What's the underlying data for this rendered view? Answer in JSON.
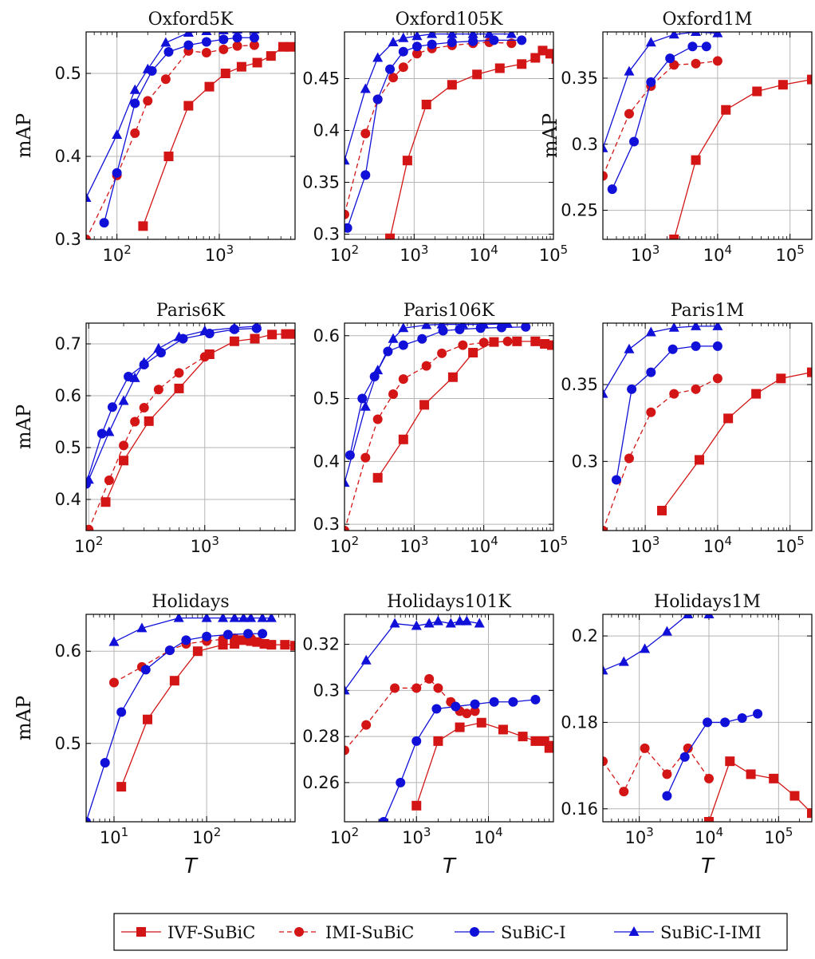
{
  "chart_data": [
    {
      "type": "line",
      "title": "Oxford5K",
      "ylabel": "mAP",
      "xlabel": "",
      "xscale": "log",
      "xlim": [
        50,
        5500
      ],
      "ylim": [
        0.3,
        0.55
      ],
      "series": [
        {
          "name": "IVF-SuBiC",
          "x": [
            180,
            320,
            500,
            800,
            1150,
            1650,
            2350,
            3200,
            4200,
            5000
          ],
          "y": [
            0.316,
            0.4,
            0.461,
            0.484,
            0.5,
            0.508,
            0.513,
            0.521,
            0.532,
            0.532
          ]
        },
        {
          "name": "IMI-SuBiC",
          "x": [
            50,
            100,
            150,
            200,
            300,
            500,
            750,
            1100,
            1500,
            2200
          ],
          "y": [
            0.3,
            0.377,
            0.428,
            0.467,
            0.493,
            0.527,
            0.525,
            0.529,
            0.533,
            0.534
          ]
        },
        {
          "name": "SuBiC-I",
          "x": [
            75,
            100,
            150,
            220,
            320,
            500,
            750,
            1100,
            1500,
            2200
          ],
          "y": [
            0.32,
            0.38,
            0.464,
            0.503,
            0.526,
            0.534,
            0.538,
            0.541,
            0.543,
            0.543
          ]
        },
        {
          "name": "SuBiC-I-IMI",
          "x": [
            50,
            100,
            150,
            200,
            300,
            500,
            750,
            1100,
            1500,
            2200
          ],
          "y": [
            0.35,
            0.426,
            0.48,
            0.505,
            0.537,
            0.549,
            0.551,
            0.552,
            0.553,
            0.553
          ]
        }
      ]
    },
    {
      "type": "line",
      "title": "Oxford105K",
      "ylabel": "",
      "xlabel": "",
      "xscale": "log",
      "xlim": [
        100,
        100000
      ],
      "ylim": [
        0.295,
        0.495
      ],
      "series": [
        {
          "name": "IVF-SuBiC",
          "x": [
            450,
            800,
            1500,
            3500,
            8000,
            17000,
            35000,
            55000,
            70000,
            90000,
            110000
          ],
          "y": [
            0.296,
            0.371,
            0.425,
            0.444,
            0.454,
            0.46,
            0.464,
            0.47,
            0.477,
            0.474,
            0.469
          ]
        },
        {
          "name": "IMI-SuBiC",
          "x": [
            100,
            200,
            300,
            500,
            700,
            1100,
            1800,
            3500,
            7000,
            12000,
            25000
          ],
          "y": [
            0.319,
            0.397,
            0.43,
            0.451,
            0.461,
            0.474,
            0.479,
            0.482,
            0.484,
            0.485,
            0.484
          ]
        },
        {
          "name": "SuBiC-I",
          "x": [
            110,
            200,
            300,
            450,
            700,
            1100,
            1800,
            3500,
            7000,
            14000,
            35000
          ],
          "y": [
            0.306,
            0.357,
            0.43,
            0.459,
            0.476,
            0.481,
            0.483,
            0.485,
            0.486,
            0.487,
            0.487
          ]
        },
        {
          "name": "SuBiC-I-IMI",
          "x": [
            100,
            200,
            300,
            500,
            700,
            1100,
            1800,
            3500,
            7000,
            12000,
            25000
          ],
          "y": [
            0.371,
            0.44,
            0.47,
            0.485,
            0.489,
            0.491,
            0.493,
            0.493,
            0.493,
            0.493,
            0.493
          ]
        }
      ]
    },
    {
      "type": "line",
      "title": "Oxford1M",
      "ylabel": "mAP",
      "xlabel": "",
      "xscale": "log",
      "xlim": [
        260,
        200000
      ],
      "ylim": [
        0.228,
        0.385
      ],
      "series": [
        {
          "name": "IVF-SuBiC",
          "x": [
            2500,
            5000,
            13000,
            35000,
            80000,
            200000
          ],
          "y": [
            0.228,
            0.288,
            0.326,
            0.34,
            0.345,
            0.349
          ]
        },
        {
          "name": "IMI-SuBiC",
          "x": [
            260,
            600,
            1200,
            2500,
            5000,
            10000
          ],
          "y": [
            0.276,
            0.323,
            0.344,
            0.36,
            0.361,
            0.363
          ]
        },
        {
          "name": "SuBiC-I",
          "x": [
            350,
            700,
            1200,
            2200,
            4500,
            7000
          ],
          "y": [
            0.266,
            0.302,
            0.347,
            0.365,
            0.374,
            0.374
          ]
        },
        {
          "name": "SuBiC-I-IMI",
          "x": [
            260,
            600,
            1200,
            2500,
            5000,
            10000
          ],
          "y": [
            0.297,
            0.355,
            0.377,
            0.383,
            0.385,
            0.384
          ]
        }
      ]
    },
    {
      "type": "line",
      "title": "Paris6K",
      "ylabel": "mAP",
      "xlabel": "",
      "xscale": "log",
      "xlim": [
        95,
        6000
      ],
      "ylim": [
        0.34,
        0.74
      ],
      "series": [
        {
          "name": "IVF-SuBiC",
          "x": [
            140,
            200,
            330,
            600,
            1100,
            1800,
            2700,
            3800,
            5000,
            6000
          ],
          "y": [
            0.395,
            0.475,
            0.551,
            0.614,
            0.68,
            0.705,
            0.71,
            0.718,
            0.719,
            0.719
          ]
        },
        {
          "name": "IMI-SuBiC",
          "x": [
            100,
            150,
            200,
            250,
            300,
            400,
            600,
            1000
          ],
          "y": [
            0.342,
            0.437,
            0.504,
            0.55,
            0.577,
            0.612,
            0.644,
            0.675
          ]
        },
        {
          "name": "SuBiC-I",
          "x": [
            95,
            130,
            160,
            220,
            300,
            420,
            650,
            1100,
            1800,
            2800
          ],
          "y": [
            0.43,
            0.527,
            0.578,
            0.637,
            0.66,
            0.683,
            0.71,
            0.72,
            0.728,
            0.73
          ]
        },
        {
          "name": "SuBiC-I-IMI",
          "x": [
            100,
            150,
            200,
            250,
            300,
            400,
            600,
            1000,
            1800,
            2800
          ],
          "y": [
            0.438,
            0.53,
            0.59,
            0.634,
            0.664,
            0.691,
            0.713,
            0.725,
            0.731,
            0.734
          ]
        }
      ]
    },
    {
      "type": "line",
      "title": "Paris106K",
      "ylabel": "",
      "xlabel": "",
      "xscale": "log",
      "xlim": [
        100,
        100000
      ],
      "ylim": [
        0.29,
        0.62
      ],
      "series": [
        {
          "name": "IVF-SuBiC",
          "x": [
            300,
            700,
            1400,
            3600,
            7000,
            14000,
            30000,
            55000,
            75000,
            95000
          ],
          "y": [
            0.374,
            0.435,
            0.49,
            0.534,
            0.573,
            0.59,
            0.591,
            0.591,
            0.587,
            0.585
          ]
        },
        {
          "name": "IMI-SuBiC",
          "x": [
            100,
            200,
            300,
            500,
            700,
            1500,
            2500,
            5000,
            10000,
            22000
          ],
          "y": [
            0.29,
            0.406,
            0.467,
            0.507,
            0.531,
            0.552,
            0.572,
            0.585,
            0.589,
            0.591
          ]
        },
        {
          "name": "SuBiC-I",
          "x": [
            120,
            180,
            270,
            420,
            700,
            1300,
            2600,
            4500,
            9000,
            18000,
            40000
          ],
          "y": [
            0.41,
            0.5,
            0.535,
            0.575,
            0.585,
            0.595,
            0.608,
            0.61,
            0.612,
            0.613,
            0.614
          ]
        },
        {
          "name": "SuBiC-I-IMI",
          "x": [
            100,
            200,
            300,
            500,
            700,
            1500,
            2500,
            5000,
            10000,
            22000
          ],
          "y": [
            0.366,
            0.487,
            0.545,
            0.595,
            0.612,
            0.617,
            0.618,
            0.618,
            0.618,
            0.619
          ]
        }
      ]
    },
    {
      "type": "line",
      "title": "Paris1M",
      "ylabel": "",
      "xlabel": "",
      "xscale": "log",
      "xlim": [
        260,
        200000
      ],
      "ylim": [
        0.255,
        0.39
      ],
      "series": [
        {
          "name": "IVF-SuBiC",
          "x": [
            1700,
            5600,
            14000,
            34000,
            75000,
            200000
          ],
          "y": [
            0.268,
            0.301,
            0.328,
            0.344,
            0.354,
            0.358
          ]
        },
        {
          "name": "IMI-SuBiC",
          "x": [
            260,
            600,
            1200,
            2500,
            5000,
            10000
          ],
          "y": [
            0.255,
            0.302,
            0.332,
            0.344,
            0.347,
            0.354
          ]
        },
        {
          "name": "SuBiC-I",
          "x": [
            400,
            650,
            1200,
            2400,
            5000,
            10000
          ],
          "y": [
            0.288,
            0.347,
            0.358,
            0.373,
            0.375,
            0.375
          ]
        },
        {
          "name": "SuBiC-I-IMI",
          "x": [
            260,
            600,
            1200,
            2500,
            5000,
            10000
          ],
          "y": [
            0.344,
            0.373,
            0.384,
            0.387,
            0.388,
            0.388
          ]
        }
      ]
    },
    {
      "type": "line",
      "title": "Holidays",
      "ylabel": "mAP",
      "xlabel": "T",
      "xscale": "log",
      "xlim": [
        5,
        900
      ],
      "ylim": [
        0.415,
        0.64
      ],
      "series": [
        {
          "name": "IVF-SuBiC",
          "x": [
            12,
            23,
            45,
            80,
            150,
            200,
            250,
            300,
            350,
            420,
            500,
            700,
            900
          ],
          "y": [
            0.453,
            0.526,
            0.568,
            0.6,
            0.607,
            0.608,
            0.612,
            0.611,
            0.61,
            0.608,
            0.607,
            0.607,
            0.606
          ]
        },
        {
          "name": "IMI-SuBiC",
          "x": [
            10,
            20,
            40,
            60,
            100,
            150,
            200,
            300
          ],
          "y": [
            0.566,
            0.583,
            0.601,
            0.608,
            0.611,
            0.613,
            0.614,
            0.614
          ]
        },
        {
          "name": "SuBiC-I",
          "x": [
            5,
            8,
            12,
            22,
            40,
            60,
            100,
            170,
            280,
            400
          ],
          "y": [
            0.415,
            0.479,
            0.534,
            0.58,
            0.601,
            0.612,
            0.616,
            0.618,
            0.619,
            0.619
          ]
        },
        {
          "name": "SuBiC-I-IMI",
          "x": [
            10,
            20,
            50,
            100,
            150,
            200,
            250,
            300,
            400,
            500
          ],
          "y": [
            0.61,
            0.625,
            0.636,
            0.636,
            0.636,
            0.636,
            0.636,
            0.636,
            0.636,
            0.636
          ]
        }
      ]
    },
    {
      "type": "line",
      "title": "Holidays101K",
      "ylabel": "",
      "xlabel": "T",
      "xscale": "log",
      "xlim": [
        100,
        80000
      ],
      "ylim": [
        0.243,
        0.333
      ],
      "series": [
        {
          "name": "IVF-SuBiC",
          "x": [
            1000,
            2000,
            4000,
            8000,
            16000,
            30000,
            45000,
            60000,
            70000,
            80000
          ],
          "y": [
            0.25,
            0.278,
            0.284,
            0.286,
            0.283,
            0.28,
            0.278,
            0.278,
            0.275,
            0.276
          ]
        },
        {
          "name": "IMI-SuBiC",
          "x": [
            100,
            200,
            500,
            1000,
            1500,
            2000,
            3000,
            4000,
            5000,
            6500
          ],
          "y": [
            0.274,
            0.285,
            0.301,
            0.301,
            0.305,
            0.301,
            0.295,
            0.291,
            0.29,
            0.291
          ]
        },
        {
          "name": "SuBiC-I",
          "x": [
            350,
            600,
            1000,
            1900,
            3500,
            6500,
            12000,
            22000,
            45000
          ],
          "y": [
            0.243,
            0.26,
            0.278,
            0.292,
            0.293,
            0.294,
            0.295,
            0.295,
            0.296
          ]
        },
        {
          "name": "SuBiC-I-IMI",
          "x": [
            100,
            200,
            500,
            1000,
            1500,
            2000,
            3000,
            4000,
            5000,
            7500
          ],
          "y": [
            0.3,
            0.313,
            0.329,
            0.328,
            0.329,
            0.33,
            0.329,
            0.33,
            0.33,
            0.329
          ]
        }
      ]
    },
    {
      "type": "line",
      "title": "Holidays1M",
      "ylabel": "",
      "xlabel": "T",
      "xscale": "log",
      "xlim": [
        300,
        300000
      ],
      "ylim": [
        0.157,
        0.205
      ],
      "series": [
        {
          "name": "IVF-SuBiC",
          "x": [
            10000,
            20000,
            40000,
            85000,
            170000,
            300000
          ],
          "y": [
            0.157,
            0.171,
            0.168,
            0.167,
            0.163,
            0.159
          ]
        },
        {
          "name": "IMI-SuBiC",
          "x": [
            300,
            600,
            1200,
            2500,
            5000,
            10000
          ],
          "y": [
            0.171,
            0.164,
            0.174,
            0.168,
            0.174,
            0.167
          ]
        },
        {
          "name": "SuBiC-I",
          "x": [
            2500,
            4500,
            9500,
            17000,
            30000,
            50000
          ],
          "y": [
            0.163,
            0.172,
            0.18,
            0.18,
            0.181,
            0.182
          ]
        },
        {
          "name": "SuBiC-I-IMI",
          "x": [
            300,
            600,
            1200,
            2500,
            5000,
            10000
          ],
          "y": [
            0.192,
            0.194,
            0.197,
            0.201,
            0.205,
            0.205
          ]
        }
      ]
    }
  ],
  "axis_labels": {
    "y": "mAP",
    "x": "T"
  },
  "legend": {
    "placement": "bottom-center",
    "entries": [
      {
        "label": "IVF-SuBiC",
        "color": "#d31515",
        "marker": "square",
        "dash": "solid"
      },
      {
        "label": "IMI-SuBiC",
        "color": "#d31515",
        "marker": "circle",
        "dash": "dashed"
      },
      {
        "label": "SuBiC-I",
        "color": "#1010d8",
        "marker": "circle",
        "dash": "solid"
      },
      {
        "label": "SuBiC-I-IMI",
        "color": "#1010d8",
        "marker": "triangle",
        "dash": "solid"
      }
    ]
  },
  "colors": {
    "red": "#d31515",
    "blue": "#1010d8",
    "grid": "#b5b5b5"
  }
}
